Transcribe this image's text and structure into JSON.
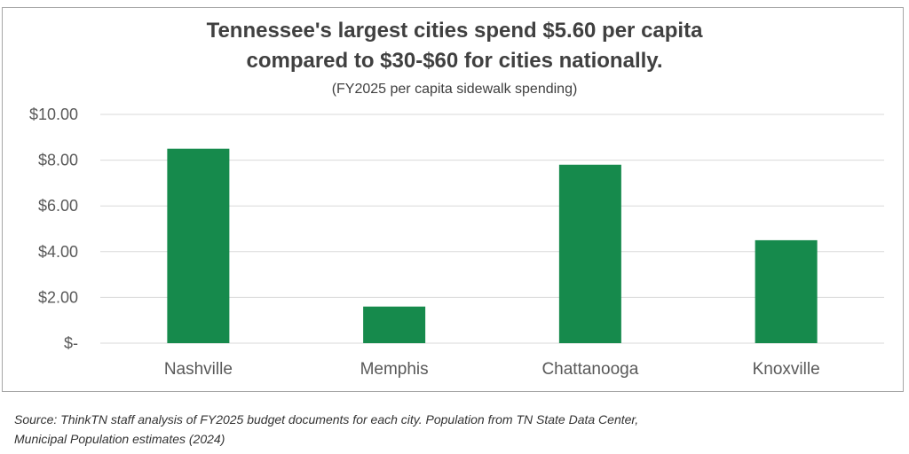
{
  "chart_data": {
    "type": "bar",
    "title": "Tennessee's largest cities spend $5.60 per capita compared to $30-$60 for cities nationally.",
    "title_lines": [
      "Tennessee's largest cities spend $5.60 per capita",
      "compared to $30-$60 for cities nationally."
    ],
    "subtitle": "(FY2025 per capita sidewalk spending)",
    "categories": [
      "Nashville",
      "Memphis",
      "Chattanooga",
      "Knoxville"
    ],
    "values": [
      8.5,
      1.6,
      7.8,
      4.5
    ],
    "ylim": [
      0,
      10
    ],
    "yticks": [
      0,
      2,
      4,
      6,
      8,
      10
    ],
    "ytick_labels": [
      "$-",
      "$2.00",
      "$4.00",
      "$6.00",
      "$8.00",
      "$10.00"
    ],
    "xlabel": "",
    "ylabel": "",
    "grid": true,
    "bar_color": "#168a4c",
    "grid_color": "#d9d9d9"
  },
  "source": {
    "line1": "Source: ThinkTN staff analysis of FY2025 budget documents for each city. Population from TN State Data Center,",
    "line2": "Municipal Population estimates (2024)"
  }
}
